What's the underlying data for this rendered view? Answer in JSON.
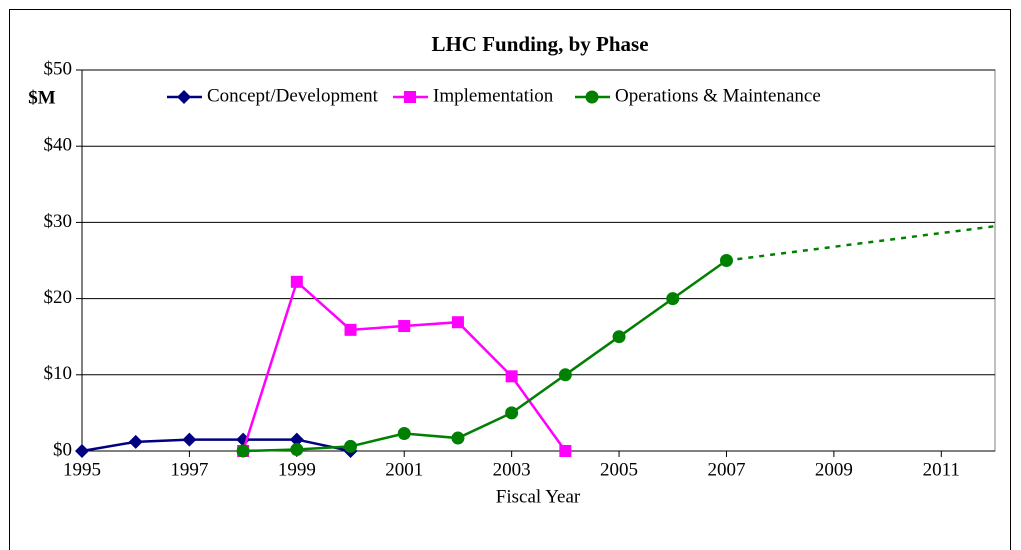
{
  "chart_data": {
    "type": "line",
    "title": "LHC Funding, by Phase",
    "y_label": "$M",
    "x_label": "Fiscal Year",
    "xlim": [
      1995,
      2012
    ],
    "xticks": [
      1995,
      1997,
      1999,
      2001,
      2003,
      2005,
      2007,
      2009,
      2011
    ],
    "ylim": [
      0,
      50
    ],
    "yticks": [
      {
        "value": 0,
        "label": "$0"
      },
      {
        "value": 10,
        "label": "$10"
      },
      {
        "value": 20,
        "label": "$20"
      },
      {
        "value": 30,
        "label": "$30"
      },
      {
        "value": 40,
        "label": "$40"
      },
      {
        "value": 50,
        "label": "$50"
      }
    ],
    "grid": true,
    "legend": "top",
    "series": [
      {
        "name": "Concept/Development",
        "color": "#000080",
        "marker": "diamond",
        "x": [
          1995,
          1996,
          1997,
          1998,
          1999,
          2000
        ],
        "values": [
          0,
          1.2,
          1.5,
          1.5,
          1.5,
          0
        ]
      },
      {
        "name": "Implementation",
        "color": "#ff00ff",
        "marker": "square",
        "x": [
          1998,
          1999,
          2000,
          2001,
          2002,
          2003,
          2004
        ],
        "values": [
          0,
          22.2,
          15.9,
          16.4,
          16.9,
          9.8,
          0
        ]
      },
      {
        "name": "Operations & Maintenance",
        "color": "#008000",
        "marker": "circle",
        "x": [
          1998,
          1999,
          2000,
          2001,
          2002,
          2003,
          2004,
          2005,
          2006,
          2007
        ],
        "values": [
          0,
          0.2,
          0.6,
          2.3,
          1.7,
          5,
          10,
          15,
          20,
          25
        ],
        "projection": {
          "x": [
            2007,
            2012
          ],
          "values": [
            25,
            29.5
          ]
        }
      }
    ]
  }
}
